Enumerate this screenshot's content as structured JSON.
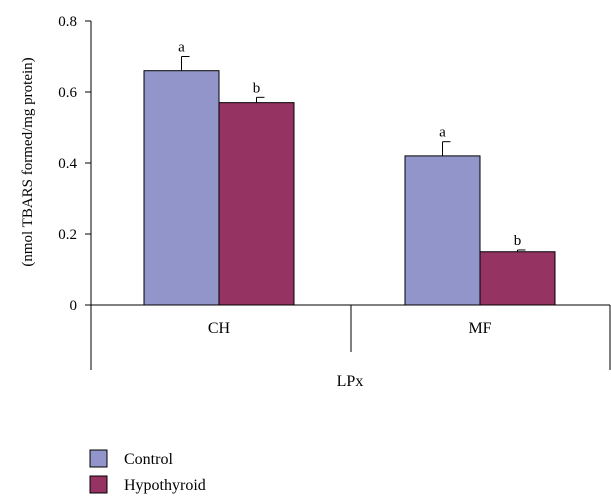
{
  "chart_data": {
    "type": "bar",
    "title": "",
    "xlabel": "",
    "ylabel": "(nmol TBARS formed/mg protein)",
    "ylim": [
      0,
      0.8
    ],
    "yticks": [
      0,
      0.2,
      0.4,
      0.6,
      0.8
    ],
    "ytick_labels": [
      "0",
      "0.2",
      "0.4",
      "0.6",
      "0.8"
    ],
    "group_label": "LPx",
    "categories": [
      "CH",
      "MF"
    ],
    "series": [
      {
        "name": "Control",
        "color": "#9195c9",
        "values": [
          0.66,
          0.42
        ],
        "errors": [
          0.04,
          0.04
        ],
        "annotations": [
          "a",
          "a"
        ]
      },
      {
        "name": "Hypothyroid",
        "color": "#953362",
        "values": [
          0.57,
          0.15
        ],
        "errors": [
          0.015,
          0.005
        ],
        "annotations": [
          "b",
          "b"
        ]
      }
    ],
    "legend_position": "bottom-left",
    "grid": false
  }
}
